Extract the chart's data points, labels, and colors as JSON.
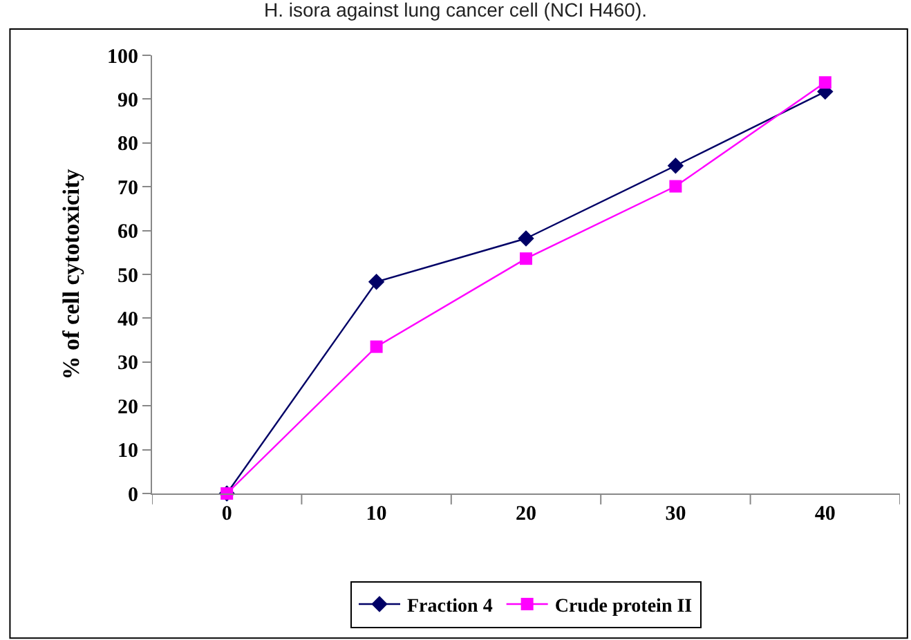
{
  "chart_data": {
    "type": "line",
    "title": "H. isora against lung cancer cell (NCI H460).",
    "ylabel": "% of cell cytotoxicity",
    "categories": [
      "0",
      "10",
      "20",
      "30",
      "40"
    ],
    "series": [
      {
        "name": "Fraction 4",
        "color": "#000066",
        "marker": "diamond",
        "values": [
          0,
          48.3,
          58.2,
          74.8,
          91.7
        ]
      },
      {
        "name": "Crude protein II",
        "color": "#ff00ff",
        "marker": "square",
        "values": [
          0,
          33.5,
          53.6,
          70.1,
          93.8
        ]
      }
    ],
    "ylim": [
      0,
      100
    ],
    "yticks": [
      0,
      10,
      20,
      30,
      40,
      50,
      60,
      70,
      80,
      90,
      100
    ],
    "legend": "bottom",
    "line_style": "solid"
  }
}
